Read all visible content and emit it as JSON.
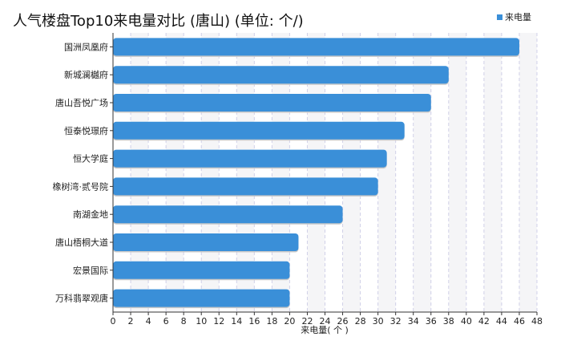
{
  "chart_data": {
    "type": "bar",
    "orientation": "horizontal",
    "title": "人气楼盘Top10来电量对比 (唐山) (单位: 个/)",
    "categories": [
      "国洲凤凰府",
      "新城澜樾府",
      "唐山吾悦广场",
      "恒泰悦璟府",
      "恒大学庭",
      "橡树湾·贰号院",
      "南湖金地",
      "唐山梧桐大道",
      "宏景国际",
      "万科翡翠观唐"
    ],
    "series": [
      {
        "name": "来电量",
        "values": [
          46,
          38,
          36,
          33,
          31,
          30,
          26,
          21,
          20,
          20
        ]
      }
    ],
    "xlabel": "来电量( 个 )",
    "ylabel": "",
    "xlim": [
      0,
      48
    ],
    "xticks": [
      "0",
      "2",
      "4",
      "6",
      "8",
      "10",
      "12",
      "14",
      "16",
      "18",
      "20",
      "22",
      "24",
      "26",
      "28",
      "30",
      "32",
      "34",
      "36",
      "38",
      "40",
      "42",
      "44",
      "46",
      "48"
    ],
    "grid": true,
    "legend": {
      "position": "top-right",
      "entries": [
        "来电量"
      ]
    },
    "colors": {
      "bar": "#3a8fd8",
      "band": "#f5f5f7",
      "grid": "#d0d0e8",
      "axis": "#333333"
    }
  }
}
